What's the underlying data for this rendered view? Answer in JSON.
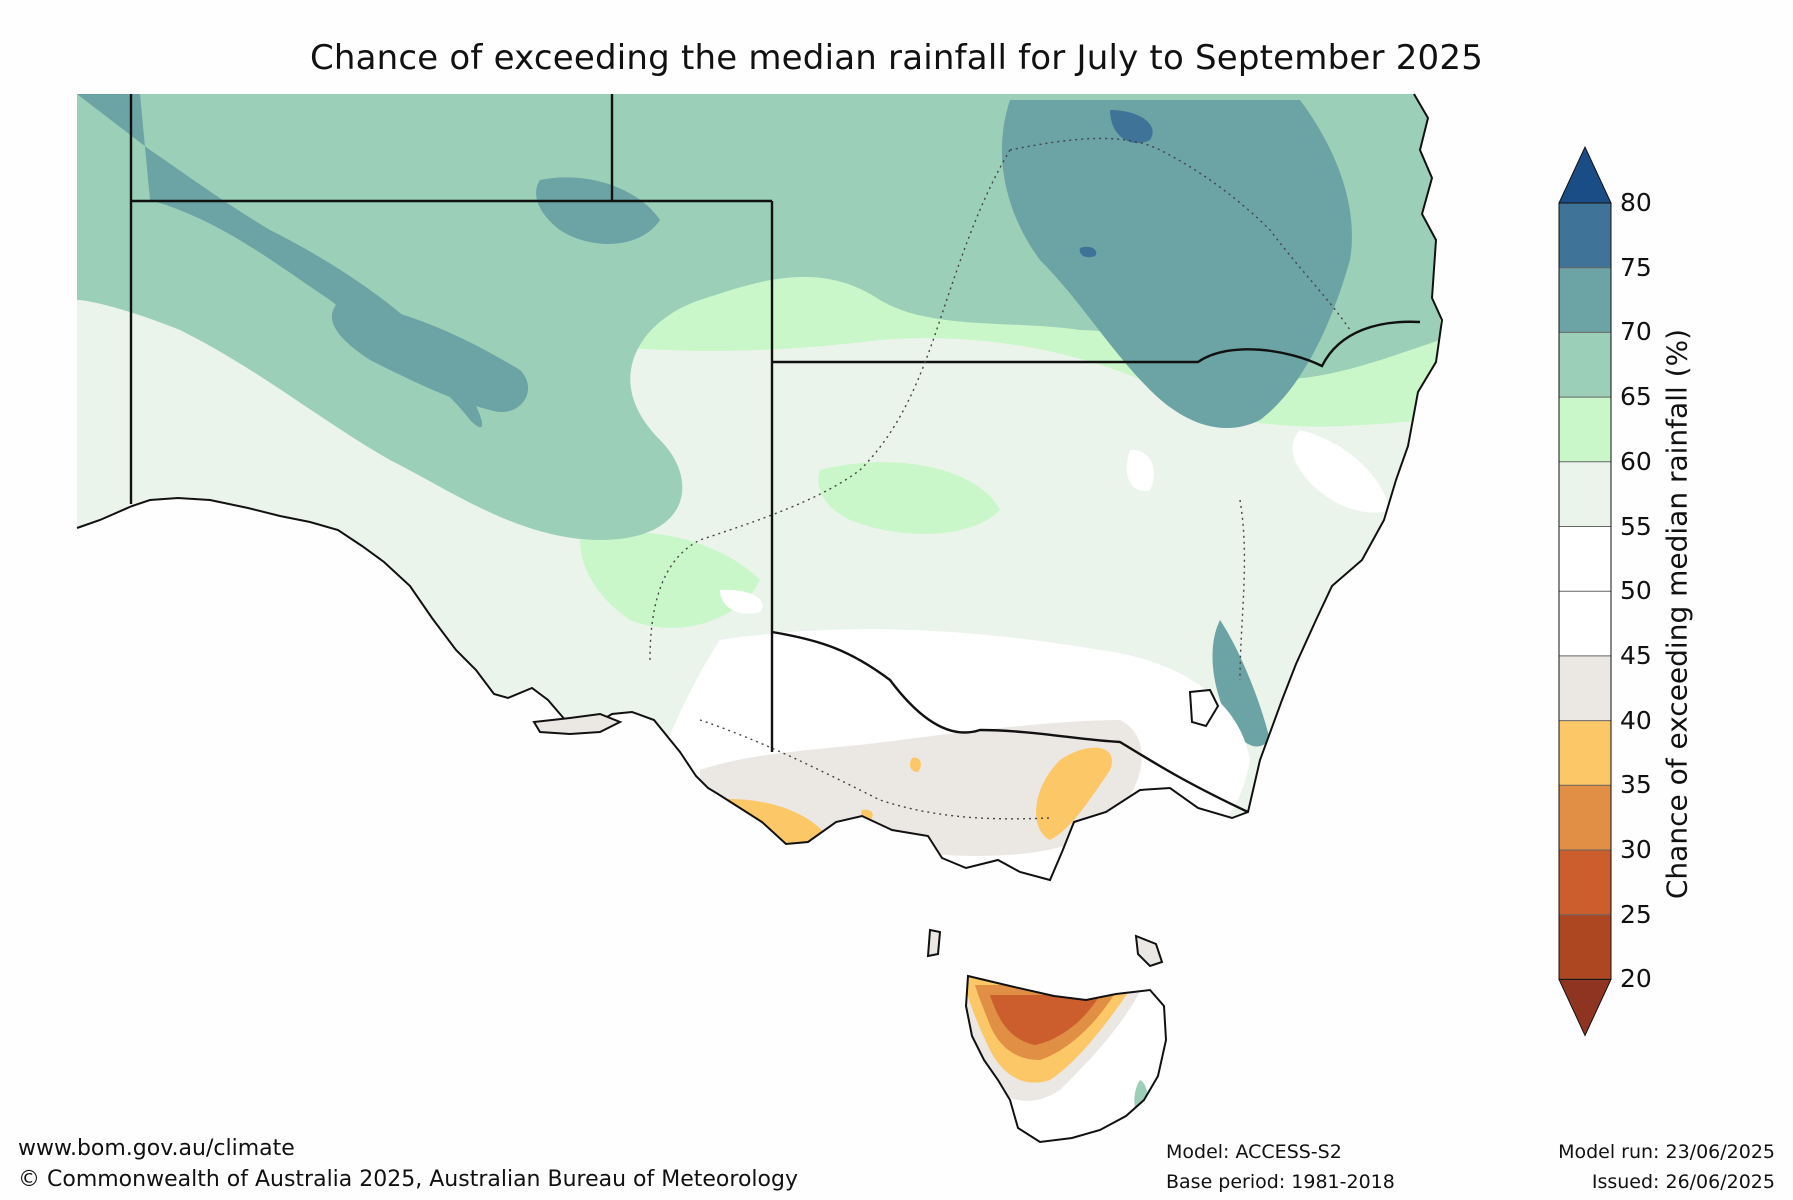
{
  "map": {
    "title": "Chance of exceeding the median rainfall for July to September 2025",
    "colorbar": {
      "label": "Chance of exceeding median rainfall (%)",
      "ticks": [
        "80",
        "75",
        "70",
        "65",
        "60",
        "55",
        "50",
        "45",
        "40",
        "35",
        "30",
        "25",
        "20"
      ],
      "bands": [
        {
          "range": "75-80",
          "color": "#3f7398"
        },
        {
          "range": "70-75",
          "color": "#6ca3a4"
        },
        {
          "range": "65-70",
          "color": "#9bcfb8"
        },
        {
          "range": "60-65",
          "color": "#c9f7c9"
        },
        {
          "range": "55-60",
          "color": "#ebf4ea"
        },
        {
          "range": "50-55",
          "color": "#ffffff"
        },
        {
          "range": "45-50",
          "color": "#ffffff"
        },
        {
          "range": "40-45",
          "color": "#ebe8e4"
        },
        {
          "range": "35-40",
          "color": "#fbc767"
        },
        {
          "range": "30-35",
          "color": "#e08f45"
        },
        {
          "range": "25-30",
          "color": "#cb5e2c"
        },
        {
          "range": "20-25",
          "color": "#ad4722"
        }
      ],
      "over_color": "#1a4d85",
      "under_color": "#8e3420"
    }
  },
  "footer": {
    "website": "www.bom.gov.au/climate",
    "copyright": "© Commonwealth of Australia 2025, Australian Bureau of Meteorology",
    "model": "Model: ACCESS-S2",
    "base_period": "Base period: 1981-2018",
    "model_run": "Model run: 23/06/2025",
    "issued": "Issued: 26/06/2025"
  }
}
